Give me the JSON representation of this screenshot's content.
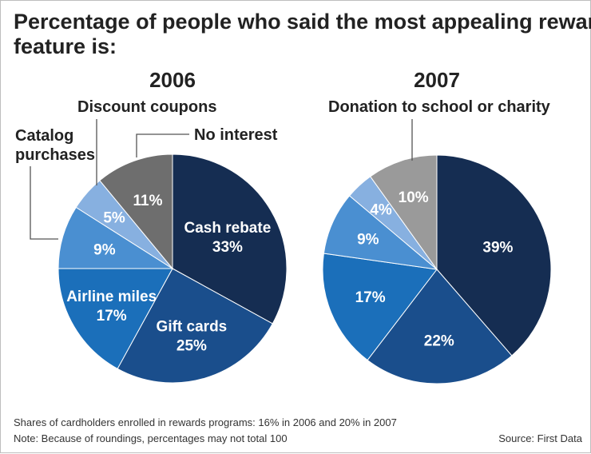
{
  "chart_data": {
    "type": "pie",
    "title_line1": "Percentage of people who said the most appealing rewards",
    "title_line2": "feature is:",
    "footnote_line1": "Shares of cardholders enrolled in rewards programs: 16% in 2006 and 20% in 2007",
    "footnote_line2": "Note: Because of roundings, percentages may not total 100",
    "source": "Source: First Data",
    "categories": [
      "Cash rebate",
      "Gift cards",
      "Airline miles",
      "Catalog purchases",
      "Discount coupons",
      "No interest / Donation to school or charity"
    ],
    "colors": [
      "#152d52",
      "#1a4e8c",
      "#1b6fba",
      "#4a8fd1",
      "#87b0e0",
      "#6e6e6e"
    ],
    "charts": [
      {
        "year": "2006",
        "slices": [
          {
            "name": "Cash rebate",
            "value": 33,
            "label_name": "Cash rebate",
            "label_value": "33%",
            "color": "#152d52"
          },
          {
            "name": "Gift cards",
            "value": 25,
            "label_name": "Gift cards",
            "label_value": "25%",
            "color": "#1a4e8c"
          },
          {
            "name": "Airline miles",
            "value": 17,
            "label_name": "Airline miles",
            "label_value": "17%",
            "color": "#1b6fba"
          },
          {
            "name": "Catalog purchases",
            "value": 9,
            "label_name": "",
            "label_value": "9%",
            "color": "#4a8fd1"
          },
          {
            "name": "Discount coupons",
            "value": 5,
            "label_name": "",
            "label_value": "5%",
            "color": "#87b0e0"
          },
          {
            "name": "No interest",
            "value": 11,
            "label_name": "",
            "label_value": "11%",
            "color": "#6e6e6e"
          }
        ],
        "callouts": [
          "Catalog",
          "purchases",
          "Discount coupons",
          "No interest"
        ]
      },
      {
        "year": "2007",
        "slices": [
          {
            "name": "Cash rebate",
            "value": 39,
            "label_name": "",
            "label_value": "39%",
            "color": "#152d52"
          },
          {
            "name": "Gift cards",
            "value": 22,
            "label_name": "",
            "label_value": "22%",
            "color": "#1a4e8c"
          },
          {
            "name": "Airline miles",
            "value": 17,
            "label_name": "",
            "label_value": "17%",
            "color": "#1b6fba"
          },
          {
            "name": "Catalog purchases",
            "value": 9,
            "label_name": "",
            "label_value": "9%",
            "color": "#4a8fd1"
          },
          {
            "name": "Discount coupons",
            "value": 4,
            "label_name": "",
            "label_value": "4%",
            "color": "#87b0e0"
          },
          {
            "name": "Donation to school or charity",
            "value": 10,
            "label_name": "",
            "label_value": "10%",
            "color": "#9a9a9a"
          }
        ],
        "callouts": [
          "Donation to school or charity"
        ]
      }
    ]
  }
}
